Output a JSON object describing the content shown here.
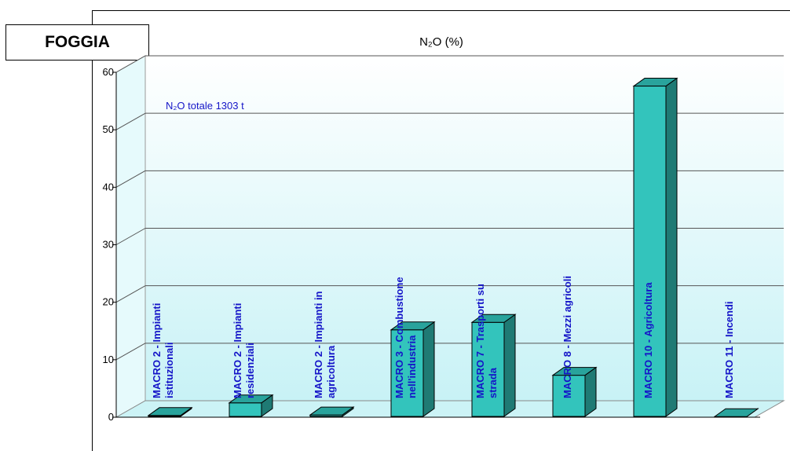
{
  "city_label": "FOGGIA",
  "chart_data": {
    "type": "bar",
    "title": "N₂O (%)",
    "annotation": "N₂O totale 1303 t",
    "ylim": [
      0,
      60
    ],
    "yticks": [
      0,
      10,
      20,
      30,
      40,
      50,
      60
    ],
    "ytick_labels": [
      "0",
      "10",
      "20",
      "30",
      "40",
      "50",
      "60"
    ],
    "grid": true,
    "categories": [
      [
        "MACRO 2 - Impianti",
        "istituzionali"
      ],
      [
        "MACRO 2 - Impianti",
        "residenziali"
      ],
      [
        "MACRO 2 - Impianti in",
        "agricoltura"
      ],
      [
        "MACRO 3 - Combustione",
        "nell'industria"
      ],
      [
        "MACRO 7 - Trasporti su",
        "strada"
      ],
      [
        "MACRO 8 - Mezzi agricoli"
      ],
      [
        "MACRO 10 - Agricoltura"
      ],
      [
        "MACRO 11 - Incendi"
      ]
    ],
    "values": [
      0.3,
      2.5,
      0.4,
      15.2,
      16.5,
      7.3,
      57.6,
      0.1
    ],
    "colors": {
      "bar_front": "#33c4bc",
      "bar_side": "#1f7a74",
      "bar_top": "#29a39c",
      "label": "#1515c8"
    }
  }
}
